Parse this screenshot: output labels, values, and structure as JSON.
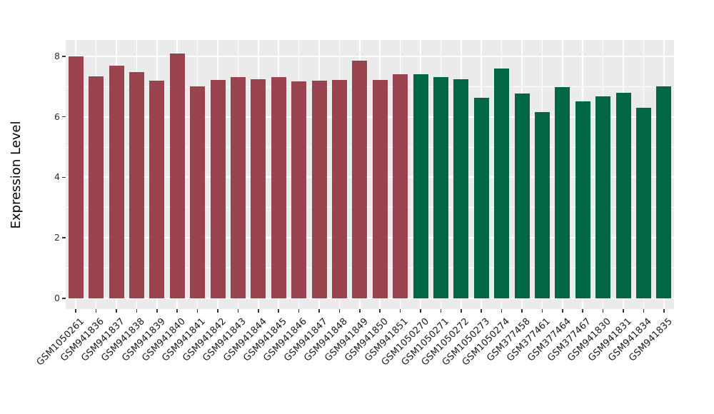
{
  "chart_data": {
    "type": "bar",
    "title": "",
    "xlabel": "",
    "ylabel": "Expression Level",
    "ylim": [
      -0.35,
      8.55
    ],
    "yticks_major": [
      0,
      2,
      4,
      6,
      8
    ],
    "yticks_minor": [
      1,
      3,
      5,
      7
    ],
    "grid": true,
    "legend_position": "none",
    "categories": [
      "GSM1050261",
      "GSM941836",
      "GSM941837",
      "GSM941838",
      "GSM941839",
      "GSM941840",
      "GSM941841",
      "GSM941842",
      "GSM941843",
      "GSM941844",
      "GSM941845",
      "GSM941846",
      "GSM941847",
      "GSM941848",
      "GSM941849",
      "GSM941850",
      "GSM941851",
      "GSM1050270",
      "GSM1050271",
      "GSM1050272",
      "GSM1050273",
      "GSM1050274",
      "GSM377458",
      "GSM377461",
      "GSM377464",
      "GSM377467",
      "GSM941830",
      "GSM941831",
      "GSM941834",
      "GSM941835"
    ],
    "values": [
      8.0,
      7.33,
      7.68,
      7.47,
      7.2,
      8.1,
      7.0,
      7.22,
      7.3,
      7.25,
      7.32,
      7.17,
      7.2,
      7.22,
      7.85,
      7.22,
      7.4,
      7.4,
      7.3,
      7.25,
      6.63,
      7.6,
      6.77,
      6.15,
      6.97,
      6.5,
      6.67,
      6.8,
      6.3,
      7.0
    ],
    "bar_colors": [
      "#9A4450",
      "#9A4450",
      "#9A4450",
      "#9A4450",
      "#9A4450",
      "#9A4450",
      "#9A4450",
      "#9A4450",
      "#9A4450",
      "#9A4450",
      "#9A4450",
      "#9A4450",
      "#9A4450",
      "#9A4450",
      "#9A4450",
      "#9A4450",
      "#9A4450",
      "#006646",
      "#006646",
      "#006646",
      "#006646",
      "#006646",
      "#006646",
      "#006646",
      "#006646",
      "#006646",
      "#006646",
      "#006646",
      "#006646",
      "#006646"
    ],
    "colors": {
      "group_left": "#9A4450",
      "group_right": "#006646",
      "panel_bg": "#EBEBEB",
      "gridline": "#FFFFFF",
      "axis_text": "#303030"
    }
  }
}
